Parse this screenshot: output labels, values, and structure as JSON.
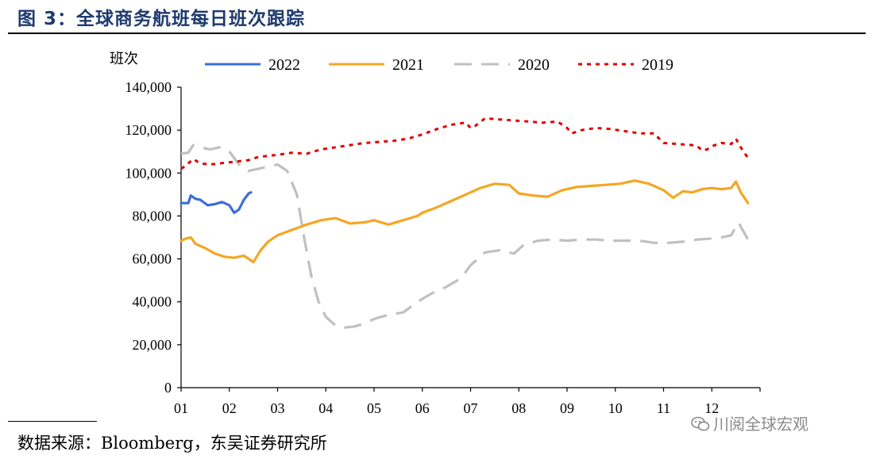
{
  "title": "图 3：全球商务航班每日班次跟踪",
  "source": {
    "label": "数据来源：",
    "text": "Bloomberg，东吴证券研究所"
  },
  "watermark": {
    "text": "川阅全球宏观",
    "icon": "wechat-icon"
  },
  "chart_data": {
    "type": "line",
    "title": "全球商务航班每日班次跟踪",
    "ylabel": "班次",
    "xlabel": "",
    "ylim": [
      0,
      140000
    ],
    "xlim": [
      1,
      13
    ],
    "yticks": [
      0,
      20000,
      40000,
      60000,
      80000,
      100000,
      120000,
      140000
    ],
    "ytick_labels": [
      "0",
      "20,000",
      "40,000",
      "60,000",
      "80,000",
      "100,000",
      "120,000",
      "140,000"
    ],
    "x_ticks": [
      1,
      2,
      3,
      4,
      5,
      6,
      7,
      8,
      9,
      10,
      11,
      12
    ],
    "x_tick_labels": [
      "01",
      "02",
      "03",
      "04",
      "05",
      "06",
      "07",
      "08",
      "09",
      "10",
      "11",
      "12"
    ],
    "legend_position": "top",
    "series": [
      {
        "name": "2022",
        "color": "#3a6fd8",
        "dash": "solid",
        "x": [
          1.0,
          1.15,
          1.2,
          1.3,
          1.4,
          1.55,
          1.7,
          1.85,
          2.0,
          2.1,
          2.2,
          2.3,
          2.4,
          2.45
        ],
        "y": [
          86000,
          86000,
          89500,
          88000,
          87500,
          85000,
          85500,
          86500,
          85000,
          81500,
          83000,
          87500,
          90500,
          91000
        ]
      },
      {
        "name": "2021",
        "color": "#f5a623",
        "dash": "solid",
        "x": [
          1.0,
          1.1,
          1.2,
          1.3,
          1.5,
          1.7,
          1.9,
          2.1,
          2.3,
          2.5,
          2.65,
          2.8,
          3.0,
          3.3,
          3.6,
          3.9,
          4.2,
          4.5,
          4.8,
          5.0,
          5.3,
          5.6,
          5.9,
          6.0,
          6.3,
          6.6,
          6.9,
          7.2,
          7.5,
          7.8,
          8.0,
          8.3,
          8.6,
          8.9,
          9.2,
          9.5,
          9.8,
          10.1,
          10.4,
          10.7,
          11.0,
          11.2,
          11.4,
          11.6,
          11.8,
          12.0,
          12.2,
          12.4,
          12.5,
          12.6,
          12.75
        ],
        "y": [
          68500,
          69500,
          70000,
          67000,
          65000,
          62500,
          61000,
          60500,
          61500,
          58500,
          64000,
          68000,
          71000,
          73500,
          76000,
          78000,
          79000,
          76500,
          77000,
          78000,
          76000,
          78000,
          80000,
          81500,
          84000,
          87000,
          90000,
          93000,
          95000,
          94500,
          90500,
          89500,
          89000,
          92000,
          93500,
          94000,
          94500,
          95000,
          96500,
          95000,
          92000,
          88500,
          91500,
          91000,
          92500,
          93000,
          92500,
          93000,
          96000,
          91000,
          86000
        ]
      },
      {
        "name": "2020",
        "color": "#c0c0c0",
        "dash": "dashed",
        "x": [
          1.0,
          1.15,
          1.25,
          1.4,
          1.6,
          1.8,
          2.0,
          2.2,
          2.4,
          2.6,
          2.8,
          3.0,
          3.2,
          3.4,
          3.55,
          3.7,
          3.85,
          4.0,
          4.2,
          4.4,
          4.6,
          4.8,
          5.0,
          5.3,
          5.6,
          5.9,
          6.2,
          6.5,
          6.8,
          7.0,
          7.3,
          7.6,
          7.9,
          8.1,
          8.4,
          8.7,
          9.0,
          9.3,
          9.6,
          9.9,
          10.2,
          10.5,
          10.8,
          11.1,
          11.4,
          11.7,
          12.0,
          12.2,
          12.4,
          12.55,
          12.75
        ],
        "y": [
          109000,
          109500,
          113000,
          112000,
          111000,
          112000,
          110000,
          104000,
          101000,
          102000,
          103000,
          104000,
          101000,
          90000,
          70000,
          52000,
          40000,
          33000,
          29000,
          28000,
          28500,
          30000,
          32000,
          34000,
          35000,
          40000,
          44000,
          47000,
          51000,
          57000,
          63000,
          64000,
          62500,
          66500,
          68500,
          69000,
          68500,
          69000,
          69000,
          68500,
          68500,
          68500,
          67500,
          67500,
          68000,
          69000,
          69500,
          70000,
          71000,
          77000,
          69000
        ]
      },
      {
        "name": "2019",
        "color": "#e00000",
        "dash": "dotted",
        "x": [
          1.0,
          1.1,
          1.25,
          1.4,
          1.6,
          1.8,
          2.0,
          2.2,
          2.4,
          2.6,
          2.8,
          3.0,
          3.3,
          3.6,
          3.9,
          4.2,
          4.5,
          4.8,
          5.1,
          5.4,
          5.7,
          6.0,
          6.3,
          6.6,
          6.9,
          7.0,
          7.1,
          7.3,
          7.6,
          7.9,
          8.2,
          8.5,
          8.8,
          9.0,
          9.1,
          9.3,
          9.6,
          9.9,
          10.2,
          10.5,
          10.8,
          11.0,
          11.3,
          11.6,
          11.7,
          11.8,
          11.9,
          12.0,
          12.2,
          12.4,
          12.5,
          12.6,
          12.75
        ],
        "y": [
          102000,
          103500,
          106500,
          104500,
          104000,
          104500,
          105000,
          105500,
          106000,
          107500,
          108000,
          108500,
          109500,
          109000,
          111000,
          112000,
          113000,
          114000,
          114500,
          115000,
          116000,
          118000,
          120500,
          122500,
          123500,
          121000,
          122000,
          125500,
          125000,
          124500,
          124000,
          123500,
          124000,
          121000,
          118500,
          120000,
          121000,
          120500,
          119500,
          118500,
          118500,
          114000,
          113500,
          113000,
          112500,
          110500,
          111000,
          112500,
          114000,
          113500,
          116000,
          112000,
          107000
        ]
      }
    ]
  }
}
